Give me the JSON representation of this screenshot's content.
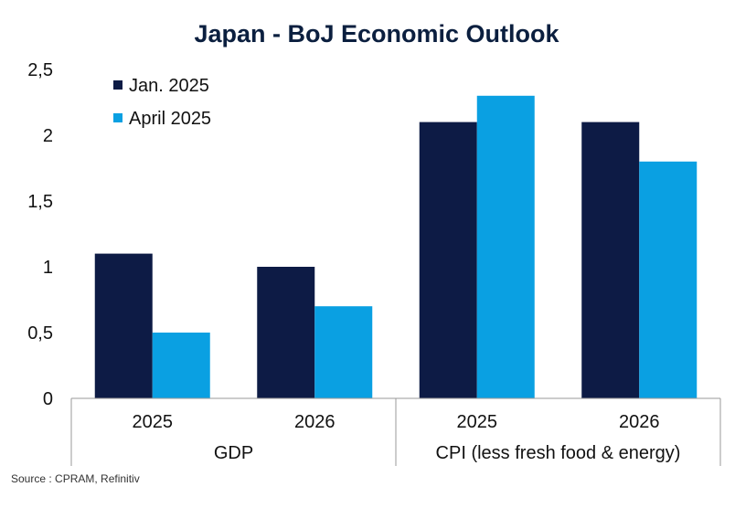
{
  "chart_data": {
    "type": "bar",
    "title": "Japan - BoJ Economic Outlook",
    "groups": [
      {
        "label": "GDP",
        "categories": [
          "2025",
          "2026"
        ]
      },
      {
        "label": "CPI (less fresh food & energy)",
        "categories": [
          "2025",
          "2026"
        ]
      }
    ],
    "series": [
      {
        "name": "Jan. 2025",
        "color": "#0d1b45",
        "values": [
          1.1,
          1.0,
          2.1,
          2.1
        ]
      },
      {
        "name": "April 2025",
        "color": "#0aa0e2",
        "values": [
          0.5,
          0.7,
          2.3,
          1.8
        ]
      }
    ],
    "yticks": [
      "0",
      "0,5",
      "1",
      "1,5",
      "2",
      "2,5"
    ],
    "ylim": [
      0,
      2.5
    ],
    "legend_position": "top-left",
    "grid": false
  },
  "source": "Source : CPRAM, Refinitiv"
}
